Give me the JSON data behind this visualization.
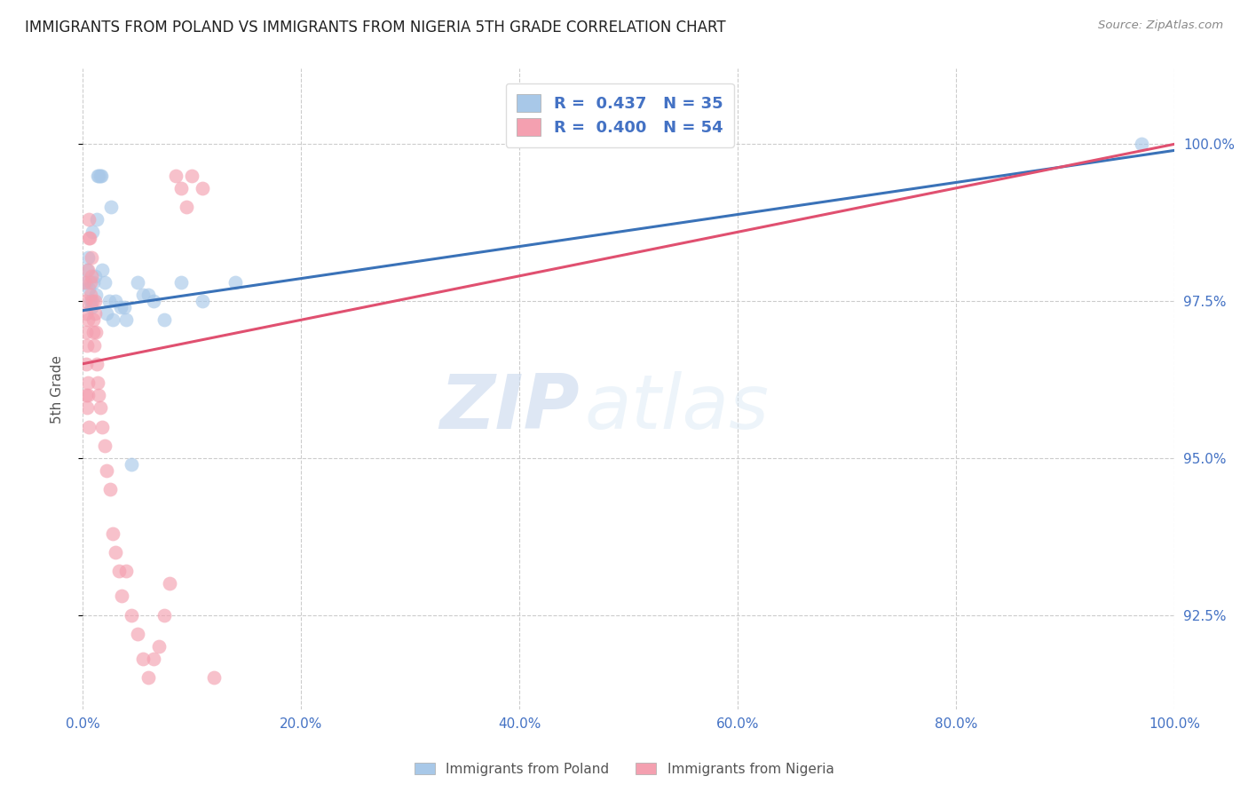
{
  "title": "IMMIGRANTS FROM POLAND VS IMMIGRANTS FROM NIGERIA 5TH GRADE CORRELATION CHART",
  "source": "Source: ZipAtlas.com",
  "ylabel_left": "5th Grade",
  "ylabel_right_ticks": [
    92.5,
    95.0,
    97.5,
    100.0
  ],
  "ylabel_right_labels": [
    "92.5%",
    "95.0%",
    "97.5%",
    "100.0%"
  ],
  "xmin": 0.0,
  "xmax": 100.0,
  "ymin": 91.0,
  "ymax": 101.2,
  "poland_color": "#a8c8e8",
  "nigeria_color": "#f4a0b0",
  "poland_line_color": "#3a72b8",
  "nigeria_line_color": "#e05070",
  "legend_poland_label": "R =  0.437   N = 35",
  "legend_nigeria_label": "R =  0.400   N = 54",
  "watermark_zip": "ZIP",
  "watermark_atlas": "atlas",
  "background_color": "#ffffff",
  "grid_color": "#cccccc",
  "poland_x": [
    0.3,
    0.4,
    0.5,
    0.6,
    0.7,
    0.8,
    0.9,
    1.0,
    1.1,
    1.2,
    1.3,
    1.4,
    1.5,
    1.6,
    1.7,
    1.8,
    2.0,
    2.2,
    2.4,
    2.6,
    2.8,
    3.0,
    3.5,
    4.0,
    4.5,
    5.0,
    5.5,
    6.5,
    7.5,
    9.0,
    11.0,
    14.0,
    97.0,
    6.0,
    3.8
  ],
  "poland_y": [
    97.8,
    98.0,
    98.2,
    97.7,
    97.5,
    97.4,
    98.6,
    97.8,
    97.9,
    97.6,
    98.8,
    99.5,
    99.5,
    99.5,
    99.5,
    98.0,
    97.8,
    97.3,
    97.5,
    99.0,
    97.2,
    97.5,
    97.4,
    97.2,
    94.9,
    97.8,
    97.6,
    97.5,
    97.2,
    97.8,
    97.5,
    97.8,
    100.0,
    97.6,
    97.4
  ],
  "nigeria_x": [
    0.2,
    0.25,
    0.3,
    0.35,
    0.4,
    0.45,
    0.5,
    0.55,
    0.6,
    0.65,
    0.7,
    0.75,
    0.8,
    0.85,
    0.9,
    0.95,
    1.0,
    1.05,
    1.1,
    1.15,
    1.2,
    1.3,
    1.4,
    1.5,
    1.6,
    1.8,
    2.0,
    2.2,
    2.5,
    2.8,
    3.0,
    3.3,
    3.6,
    4.0,
    4.5,
    5.0,
    5.5,
    6.0,
    6.5,
    7.0,
    7.5,
    8.0,
    8.5,
    9.0,
    9.5,
    10.0,
    11.0,
    12.0,
    0.3,
    0.4,
    0.5,
    0.6,
    0.35,
    0.45
  ],
  "nigeria_y": [
    97.8,
    97.5,
    97.3,
    97.0,
    96.8,
    97.2,
    98.0,
    98.5,
    98.8,
    98.5,
    97.6,
    97.8,
    98.2,
    97.9,
    97.5,
    97.2,
    97.0,
    96.8,
    97.3,
    97.5,
    97.0,
    96.5,
    96.2,
    96.0,
    95.8,
    95.5,
    95.2,
    94.8,
    94.5,
    93.8,
    93.5,
    93.2,
    92.8,
    93.2,
    92.5,
    92.2,
    91.8,
    91.5,
    91.8,
    92.0,
    92.5,
    93.0,
    99.5,
    99.3,
    99.0,
    99.5,
    99.3,
    91.5,
    96.0,
    95.8,
    96.2,
    95.5,
    96.5,
    96.0
  ],
  "poland_trend_x": [
    0.0,
    100.0
  ],
  "poland_trend_y": [
    97.35,
    99.9
  ],
  "nigeria_trend_x": [
    0.0,
    100.0
  ],
  "nigeria_trend_y": [
    96.5,
    100.0
  ],
  "xtick_vals": [
    0,
    20,
    40,
    60,
    80,
    100
  ],
  "xtick_labels": [
    "0.0%",
    "20.0%",
    "40.0%",
    "60.0%",
    "80.0%",
    "100.0%"
  ]
}
